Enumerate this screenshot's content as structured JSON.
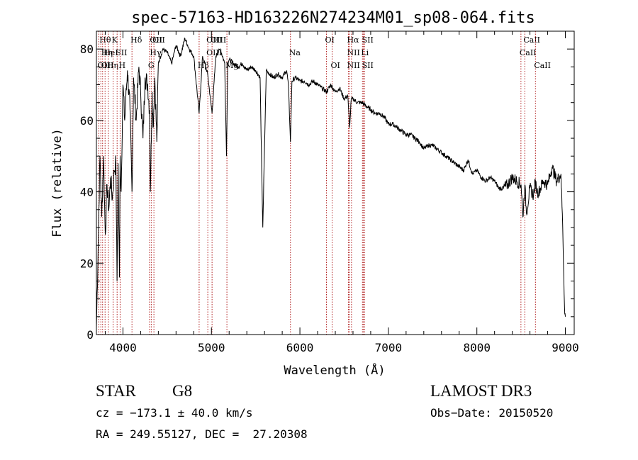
{
  "chart_data": {
    "type": "line",
    "title": "spec-57163-HD163226N274234M01_sp08-064.fits",
    "xlabel": "Wavelength (Å)",
    "ylabel": "Flux (relative)",
    "xlim": [
      3700,
      9100
    ],
    "ylim": [
      0,
      85
    ],
    "x_ticks": [
      4000,
      5000,
      6000,
      7000,
      8000,
      9000
    ],
    "y_ticks": [
      0,
      20,
      40,
      60,
      80
    ],
    "grid": false,
    "series": [
      {
        "color": "#000000",
        "x": [
          3700,
          3720,
          3740,
          3760,
          3780,
          3800,
          3820,
          3840,
          3860,
          3880,
          3900,
          3920,
          3933,
          3945,
          3960,
          3968,
          3980,
          4000,
          4020,
          4050,
          4080,
          4102,
          4120,
          4150,
          4180,
          4200,
          4226,
          4250,
          4280,
          4300,
          4310,
          4330,
          4340,
          4360,
          4383,
          4400,
          4450,
          4500,
          4550,
          4600,
          4650,
          4700,
          4750,
          4800,
          4861,
          4900,
          4957,
          5007,
          5050,
          5100,
          5150,
          5170,
          5184,
          5200,
          5250,
          5300,
          5350,
          5400,
          5450,
          5500,
          5550,
          5580,
          5620,
          5700,
          5750,
          5800,
          5850,
          5870,
          5893,
          5910,
          5950,
          6000,
          6050,
          6100,
          6150,
          6200,
          6250,
          6300,
          6350,
          6400,
          6450,
          6500,
          6540,
          6563,
          6580,
          6600,
          6650,
          6700,
          6750,
          6800,
          6850,
          6900,
          6950,
          7000,
          7050,
          7100,
          7150,
          7200,
          7250,
          7300,
          7350,
          7400,
          7450,
          7500,
          7550,
          7600,
          7650,
          7700,
          7750,
          7800,
          7850,
          7900,
          7950,
          8000,
          8050,
          8100,
          8150,
          8200,
          8250,
          8300,
          8350,
          8400,
          8450,
          8500,
          8520,
          8542,
          8560,
          8600,
          8640,
          8662,
          8680,
          8700,
          8750,
          8800,
          8850,
          8900,
          8950,
          8970,
          8990,
          9000
        ],
        "values": [
          2,
          25,
          50,
          33,
          50,
          28,
          42,
          35,
          44,
          38,
          46,
          48,
          15,
          48,
          16,
          50,
          40,
          70,
          60,
          74,
          63,
          40,
          72,
          60,
          75,
          68,
          55,
          72,
          70,
          63,
          40,
          68,
          58,
          72,
          54,
          76,
          80,
          79,
          76,
          81,
          78,
          83,
          80,
          78,
          62,
          78,
          73,
          62,
          78,
          80,
          76,
          50,
          76,
          77,
          76,
          75,
          76,
          74,
          75,
          74,
          72,
          30,
          74,
          72,
          73,
          72,
          74,
          70,
          54,
          71,
          72,
          71,
          71,
          70,
          71,
          70,
          69,
          68,
          70,
          68,
          69,
          66,
          67,
          58,
          66,
          66,
          65,
          65,
          64,
          63,
          62,
          62,
          61,
          59,
          59,
          58,
          57,
          56,
          56,
          55,
          54,
          52,
          53,
          53,
          52,
          51,
          50,
          49,
          48,
          47,
          46,
          49,
          45,
          46,
          44,
          43,
          44,
          43,
          41,
          41,
          42,
          44,
          43,
          42,
          33,
          42,
          34,
          41,
          39,
          43,
          40,
          40,
          43,
          42,
          47,
          43,
          45,
          30,
          8,
          5
        ]
      }
    ],
    "line_markers": [
      {
        "wavelength": 3727,
        "labels": [
          "OII"
        ],
        "row": 3
      },
      {
        "wavelength": 3750,
        "labels": [
          "Hθ"
        ],
        "row": 1
      },
      {
        "wavelength": 3770,
        "labels": [
          "Hη",
          "OII"
        ],
        "rows": [
          2,
          3
        ]
      },
      {
        "wavelength": 3798,
        "labels": [
          "HeI"
        ],
        "row": 2
      },
      {
        "wavelength": 3835,
        "labels": [
          "Hη"
        ],
        "row": 3
      },
      {
        "wavelength": 3889,
        "labels": [
          "K"
        ],
        "row": 1
      },
      {
        "wavelength": 3934,
        "labels": [
          "SII"
        ],
        "row": 2
      },
      {
        "wavelength": 3968,
        "labels": [
          "H"
        ],
        "row": 3
      },
      {
        "wavelength": 4102,
        "labels": [
          "Hδ"
        ],
        "row": 1
      },
      {
        "wavelength": 4300,
        "labels": [
          "G"
        ],
        "row": 3
      },
      {
        "wavelength": 4320,
        "labels": [
          "OII",
          "Hγ"
        ],
        "rows": [
          1,
          2
        ]
      },
      {
        "wavelength": 4350,
        "labels": [
          "OII"
        ],
        "row": 1
      },
      {
        "wavelength": 4861,
        "labels": [
          "Hβ"
        ],
        "row": 3
      },
      {
        "wavelength": 4959,
        "labels": [
          "OIII",
          "OIII"
        ],
        "rows": [
          1,
          2
        ]
      },
      {
        "wavelength": 5007,
        "labels": [
          "OIII"
        ],
        "row": 1
      },
      {
        "wavelength": 5175,
        "labels": [
          "Mg"
        ],
        "row": 3
      },
      {
        "wavelength": 5893,
        "labels": [
          "Na"
        ],
        "row": 2
      },
      {
        "wavelength": 6300,
        "labels": [
          "OI"
        ],
        "row": 1
      },
      {
        "wavelength": 6364,
        "labels": [
          "OI"
        ],
        "row": 3
      },
      {
        "wavelength": 6548,
        "labels": [
          "Hα",
          "NII",
          "NII"
        ],
        "rows": [
          1,
          2,
          3
        ]
      },
      {
        "wavelength": 6563,
        "labels": [],
        "rows": []
      },
      {
        "wavelength": 6583,
        "labels": [],
        "rows": []
      },
      {
        "wavelength": 6707,
        "labels": [
          "Li"
        ],
        "row": 2
      },
      {
        "wavelength": 6717,
        "labels": [
          "SII",
          "SII"
        ],
        "rows": [
          1,
          3
        ]
      },
      {
        "wavelength": 6731,
        "labels": [],
        "rows": []
      },
      {
        "wavelength": 8498,
        "labels": [
          "CaII"
        ],
        "row": 2
      },
      {
        "wavelength": 8542,
        "labels": [
          "CaII"
        ],
        "row": 1
      },
      {
        "wavelength": 8662,
        "labels": [
          "CaII"
        ],
        "row": 3
      }
    ]
  },
  "info": {
    "object_type": "STAR",
    "subclass": "G8",
    "survey": "LAMOST DR3",
    "cz": "cz = −173.1 ± 40.0 km/s",
    "obs_date": "Obs−Date: 20150520",
    "coords": "RA = 249.55127, DEC =  27.20308"
  },
  "colors": {
    "spectrum": "#000000",
    "line_markers": "#b22222",
    "axes": "#000000",
    "background": "#ffffff"
  }
}
